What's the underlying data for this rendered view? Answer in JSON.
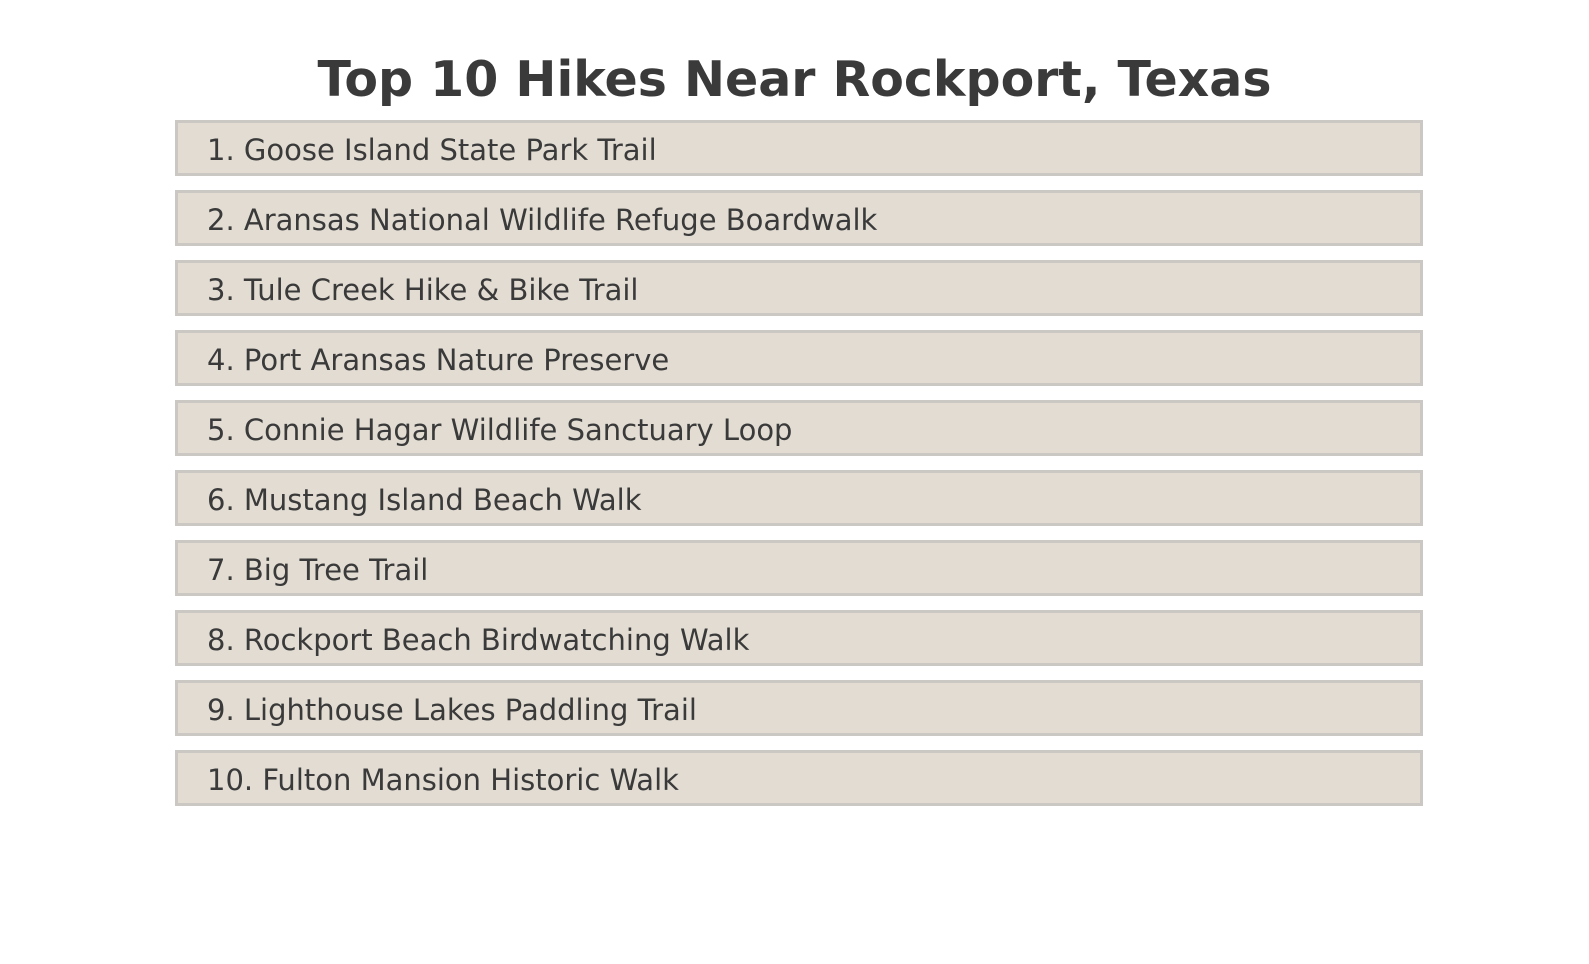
{
  "title": "Top 10 Hikes Near Rockport, Texas",
  "hikes": [
    {
      "label": "1. Goose Island State Park Trail"
    },
    {
      "label": "2. Aransas National Wildlife Refuge Boardwalk"
    },
    {
      "label": "3. Tule Creek Hike & Bike Trail"
    },
    {
      "label": "4. Port Aransas Nature Preserve"
    },
    {
      "label": "5. Connie Hagar Wildlife Sanctuary Loop"
    },
    {
      "label": "6. Mustang Island Beach Walk"
    },
    {
      "label": "7. Big Tree Trail"
    },
    {
      "label": "8. Rockport Beach Birdwatching Walk"
    },
    {
      "label": "9. Lighthouse Lakes Paddling Trail"
    },
    {
      "label": "10. Fulton Mansion Historic Walk"
    }
  ],
  "colors": {
    "item_background": "#e2dcd3",
    "item_border": "#cbc8c4",
    "text": "#3a3a3a"
  }
}
